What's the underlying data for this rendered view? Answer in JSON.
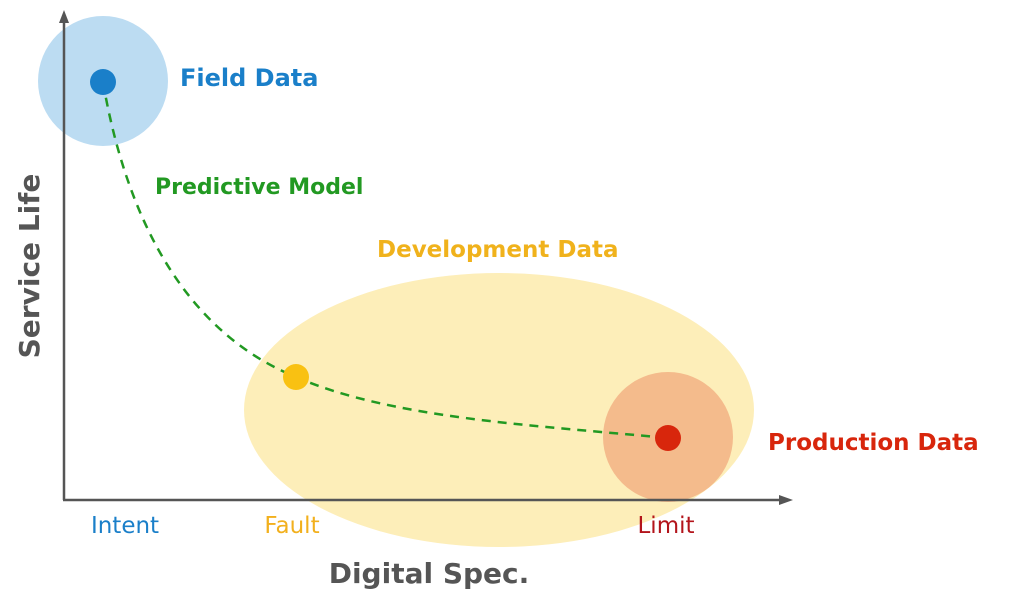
{
  "colors": {
    "field": "#1a7fc9",
    "field_halo": "#bcdcf2",
    "model": "#229922",
    "development": "#f0b21c",
    "development_zone": "#fdeeb9",
    "fault_point": "#f9c112",
    "production": "#d8260c",
    "production_halo": "#f4bb8c",
    "limit_tick": "#b3141b",
    "axis": "#555555"
  },
  "axes": {
    "x_title": "Digital Spec.",
    "y_title": "Service Life",
    "x_ticks": [
      "Intent",
      "Fault",
      "Limit"
    ]
  },
  "regions": {
    "field": "Field Data",
    "development": "Development Data",
    "production": "Production Data"
  },
  "curve": {
    "label": "Predictive Model"
  }
}
